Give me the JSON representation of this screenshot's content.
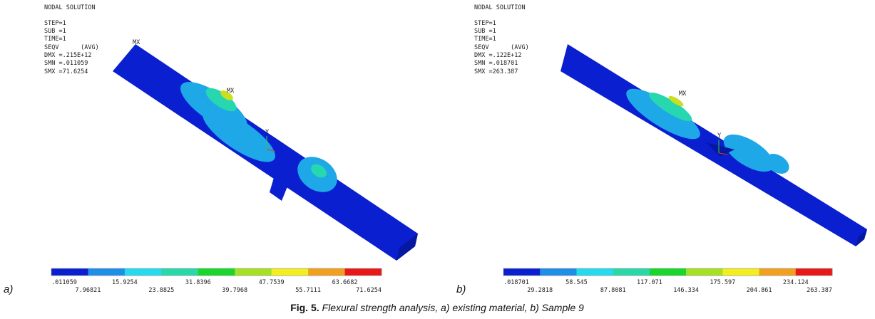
{
  "panels": [
    {
      "label": "a)",
      "header": [
        "NODAL SOLUTION",
        "STEP=1",
        "SUB =1",
        "TIME=1",
        "SEQV      (AVG)",
        "DMX =.215E+12",
        "SMN =.011059",
        "SMX =71.6254"
      ],
      "markers": [
        "MX",
        "MX",
        "Y"
      ],
      "legend_top": [
        ".011059",
        "15.9254",
        "31.8396",
        "47.7539",
        "63.6682"
      ],
      "legend_bottom": [
        "7.96821",
        "23.8825",
        "39.7968",
        "55.7111",
        "71.6254"
      ]
    },
    {
      "label": "b)",
      "header": [
        "NODAL SOLUTION",
        "STEP=1",
        "SUB =1",
        "TIME=1",
        "SEQV      (AVG)",
        "DMX =.122E+12",
        "SMN =.018701",
        "SMX =263.387"
      ],
      "markers": [
        "MX",
        "Y"
      ],
      "legend_top": [
        ".018701",
        "58.545",
        "117.071",
        "175.597",
        "234.124"
      ],
      "legend_bottom": [
        "29.2818",
        "87.8081",
        "146.334",
        "204.861",
        "263.387"
      ]
    }
  ],
  "caption": {
    "label": "Fig. 5.",
    "text": "Flexural strength analysis, a) existing material, b) Sample 9"
  }
}
